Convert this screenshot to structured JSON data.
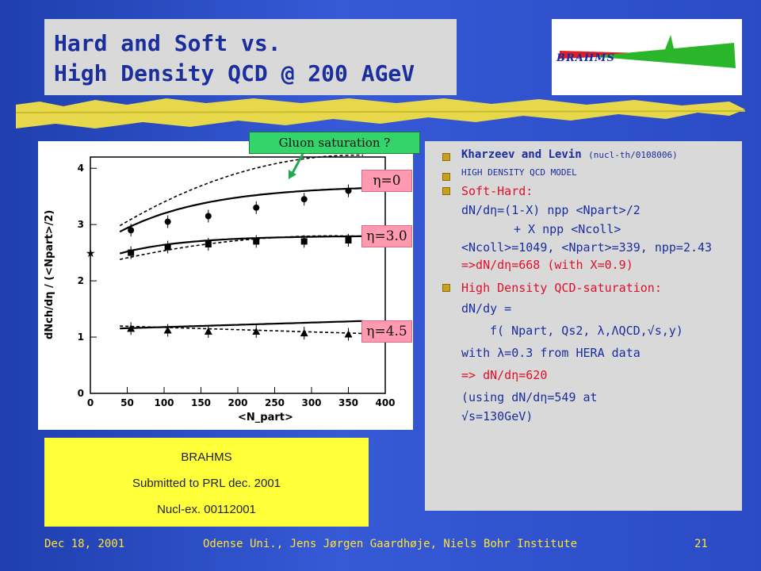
{
  "title": {
    "line1": "Hard and Soft vs.",
    "line2": "High Density QCD @ 200 AGeV"
  },
  "logo": {
    "text": "BRAHMS"
  },
  "plot": {
    "annotation": "Gluon saturation ?",
    "eta_labels": [
      "η=0",
      "η=3.0",
      "η=4.5"
    ],
    "x_ticks": [
      "0",
      "50",
      "100",
      "150",
      "200",
      "250",
      "300",
      "350",
      "400"
    ],
    "y_ticks": [
      "0",
      "1",
      "2",
      "3",
      "4"
    ],
    "xlabel": "<N_part>",
    "ylabel": "dNch/dη / (<Npart>/2)"
  },
  "chart_data": {
    "type": "scatter",
    "x_range": [
      0,
      400
    ],
    "y_range": [
      0,
      4.2
    ],
    "series": [
      {
        "name": "η=0",
        "x": [
          55,
          105,
          160,
          225,
          290,
          350
        ],
        "y": [
          2.9,
          3.05,
          3.15,
          3.3,
          3.45,
          3.6
        ]
      },
      {
        "name": "η=3.0",
        "x": [
          55,
          105,
          160,
          225,
          290,
          350
        ],
        "y": [
          2.5,
          2.6,
          2.65,
          2.7,
          2.7,
          2.72
        ]
      },
      {
        "name": "η=4.5",
        "x": [
          55,
          105,
          160,
          225,
          290,
          350
        ],
        "y": [
          1.15,
          1.12,
          1.1,
          1.1,
          1.07,
          1.05
        ]
      }
    ]
  },
  "references": {
    "line1": "BRAHMS",
    "line2": "Submitted to PRL dec. 2001",
    "line3": "Nucl-ex. 00112001"
  },
  "text": {
    "kl_title": "Kharzeev and Levin",
    "kl_ref": "(nucl-th/0108006)",
    "kl_model": "HIGH DENSITY QCD MODEL",
    "soft_hard": "Soft-Hard:",
    "eq1": "dN/dη=(1-X) npp <Npart>/2",
    "eq2": "+ X  npp <Ncoll>",
    "eq3": "<Ncoll>=1049, <Npart>=339, npp=2.43",
    "eq3_red": "=>dN/dη=668 (with X=0.9)",
    "hd_title": "High Density QCD-saturation:",
    "hd1": "dN/dy =",
    "hd2": "f( Npart, Qs2, λ,ΛQCD,√s,y)",
    "hd3": "with λ=0.3 from HERA data",
    "hd4": "=> dN/dη=620",
    "hd5": "(using dN/dη=549 at",
    "hd6": "√s=130GeV)"
  },
  "footer": {
    "date": "Dec 18, 2001",
    "center": "Odense Uni.,  Jens Jørgen Gaardhøje, Niels Bohr Institute",
    "page": "21"
  }
}
